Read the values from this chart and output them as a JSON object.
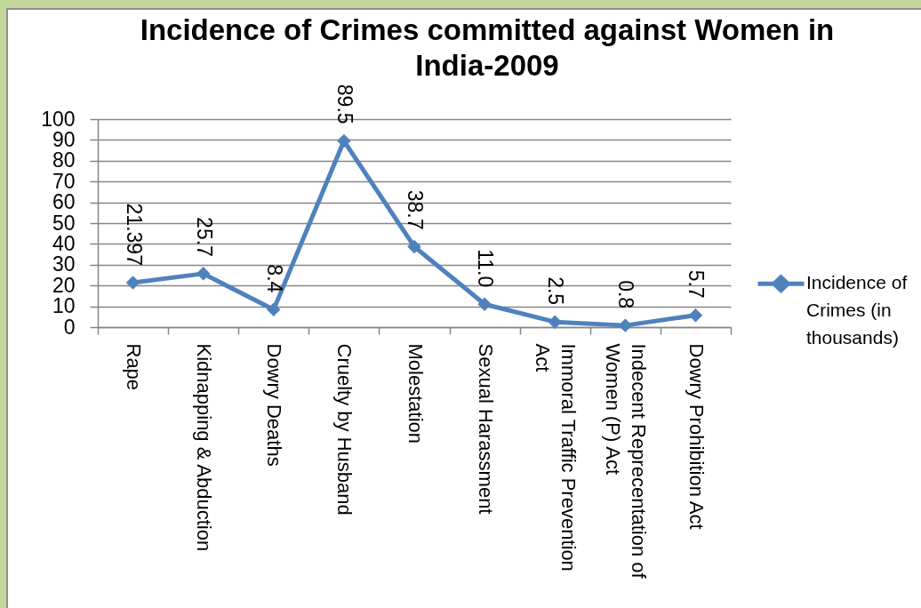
{
  "chart_data": {
    "type": "line",
    "title": "Incidence of Crimes committed against Women in India-2009",
    "categories": [
      "Rape",
      "Kidnapping & Abduction",
      "Dowry Deaths",
      "Cruelty by Husband",
      "Molestation",
      "Sexual Harassment",
      "Immoral Traffic Prevention Act",
      "Indecent Reprecentation of Women (P) Act",
      "Dowry Prohibition Act"
    ],
    "series": [
      {
        "name": "Incidence of Crimes (in thousands)",
        "color": "#4f81bd",
        "values": [
          21.397,
          25.7,
          8.4,
          89.5,
          38.7,
          11,
          2.5,
          0.8,
          5.7
        ],
        "value_labels": [
          "21.397",
          "25.7",
          "8.4",
          "89.5",
          "38.7",
          "11.0",
          "2.5",
          "0.8",
          "5.7"
        ]
      }
    ],
    "ylim": [
      0,
      100
    ],
    "yticks": [
      0,
      10,
      20,
      30,
      40,
      50,
      60,
      70,
      80,
      90,
      100
    ],
    "grid": "y",
    "legend": "right",
    "marker": "diamond"
  }
}
